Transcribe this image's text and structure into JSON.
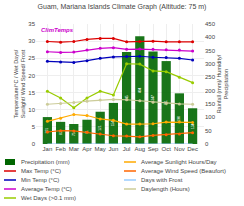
{
  "chart_data": {
    "type": "bar",
    "title": "Guam, Mariana Islands Climate Graph (Altitude: 75 m)",
    "ylabel": "Temperature/°C / Wet Days/ Sunlight/ Wind Speed/ Frost",
    "y2label": "Rainfall (mm)/ Humidity/ Precipitation",
    "categories": [
      "Jan",
      "Feb",
      "Mar",
      "Apr",
      "May",
      "Jun",
      "Jul",
      "Aug",
      "Sep",
      "Oct",
      "Nov",
      "Dec"
    ],
    "series": [
      {
        "name": "Precipitation (mm)",
        "type": "bar",
        "axis": "y2",
        "color": "#006600",
        "data_labels": true,
        "values": [
          101,
          83,
          75,
          91,
          121,
          154,
          345,
          404,
          347,
          311,
          190,
          134
        ]
      },
      {
        "name": "Max Temp (°C)",
        "type": "line",
        "color": "#dd0000",
        "marker": "circle",
        "values": [
          29.9,
          29.7,
          29.9,
          30.5,
          30.8,
          30.8,
          29.8,
          29.9,
          30.0,
          29.8,
          29.8,
          29.8
        ]
      },
      {
        "name": "Min Temp (°C)",
        "type": "line",
        "color": "#0000bb",
        "marker": "circle",
        "values": [
          24.1,
          23.9,
          23.8,
          24.3,
          25.0,
          25.4,
          25.5,
          25.6,
          25.3,
          25.2,
          25.0,
          24.5
        ]
      },
      {
        "name": "Average Temp (°C)",
        "type": "line",
        "color": "#cc00cc",
        "marker": "circle",
        "values": [
          26.9,
          26.7,
          26.8,
          27.4,
          27.9,
          28.1,
          27.6,
          27.7,
          27.6,
          27.5,
          27.4,
          27.1
        ]
      },
      {
        "name": "Wet Days (>0.1 mm)",
        "type": "line",
        "color": "#99cc00",
        "marker": "circle",
        "values": [
          15.4,
          13.4,
          10.6,
          13.4,
          15.4,
          14.3,
          23.4,
          23.3,
          21.3,
          21.1,
          19.5,
          17.9
        ]
      },
      {
        "name": "Average Sunlight Hours/Day",
        "type": "line",
        "color": "#ffaa00",
        "marker": "circle",
        "values": [
          6.6,
          7.5,
          8.6,
          8.3,
          7.3,
          6.9,
          5.8,
          5.8,
          5.9,
          6.4,
          6.4,
          6.3
        ]
      },
      {
        "name": "Average Wind Speed (Beaufort)",
        "type": "line",
        "color": "#ff6600",
        "marker": "circle",
        "values": [
          3.5,
          3.9,
          3.8,
          3.4,
          2.9,
          2.4,
          2.3,
          2.1,
          2.5,
          2.7,
          2.9,
          3.3
        ]
      },
      {
        "name": "Days with Frost",
        "type": "line",
        "color": "#99ccff",
        "values": [
          0,
          0,
          0,
          0,
          0,
          0,
          0,
          0,
          0,
          0,
          0,
          0
        ]
      },
      {
        "name": "Daylength (Hours)",
        "type": "line",
        "color": "#cccc99",
        "marker": "circle",
        "values": [
          11.6,
          11.8,
          12.1,
          12.5,
          12.8,
          13.0,
          12.9,
          12.6,
          12.2,
          11.9,
          11.7,
          11.6
        ]
      }
    ],
    "ylim": [
      0,
      35
    ],
    "yticks": [
      0,
      5,
      10,
      15,
      20,
      25,
      30,
      35
    ],
    "y2lim": [
      0,
      450
    ],
    "y2ticks": [
      0,
      50,
      100,
      150,
      200,
      250,
      300,
      350,
      400,
      450
    ],
    "grid": true,
    "legend": "lower left",
    "annotations": [
      {
        "text": "ClimTemps",
        "color": "#cc00cc"
      }
    ]
  }
}
